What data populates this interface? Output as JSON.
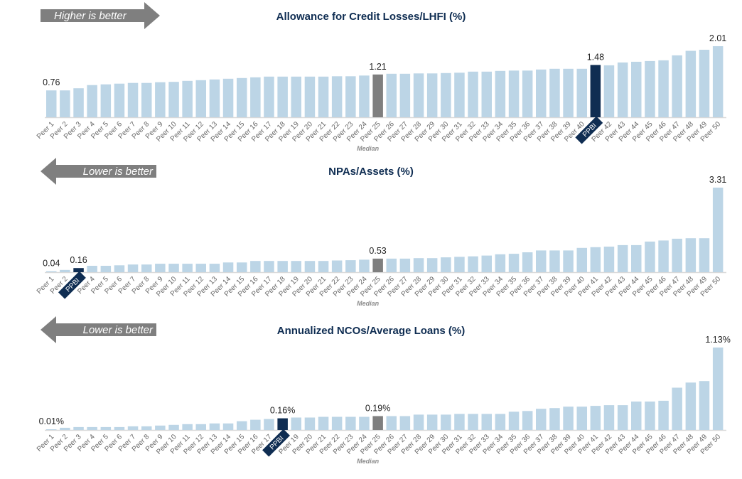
{
  "colors": {
    "peer": "#bcd5e6",
    "median": "#7f7f7f",
    "company": "#0f2d52",
    "arrow": "#7f7f7f"
  },
  "median_label": "Median",
  "chart_data": [
    {
      "type": "bar",
      "title": "Allowance for Credit Losses/LHFI (%)",
      "direction_label": "Higher is better",
      "direction": "right",
      "categories": [
        "Peer 1",
        "Peer 2",
        "Peer 3",
        "Peer 4",
        "Peer 5",
        "Peer 6",
        "Peer 7",
        "Peer 8",
        "Peer 9",
        "Peer 10",
        "Peer 11",
        "Peer 12",
        "Peer 13",
        "Peer 14",
        "Peer 15",
        "Peer 16",
        "Peer 17",
        "Peer 18",
        "Peer 19",
        "Peer 20",
        "Peer 21",
        "Peer 22",
        "Peer 23",
        "Peer 24",
        "Peer 25",
        "Peer 26",
        "Peer 27",
        "Peer 28",
        "Peer 29",
        "Peer 30",
        "Peer 31",
        "Peer 32",
        "Peer 33",
        "Peer 34",
        "Peer 35",
        "Peer 36",
        "Peer 37",
        "Peer 38",
        "Peer 39",
        "Peer 40",
        "PPBI",
        "Peer 42",
        "Peer 43",
        "Peer 44",
        "Peer 45",
        "Peer 46",
        "Peer 47",
        "Peer 48",
        "Peer 49",
        "Peer 50"
      ],
      "values": [
        0.76,
        0.76,
        0.82,
        0.91,
        0.93,
        0.95,
        0.97,
        0.97,
        0.99,
        1.0,
        1.03,
        1.05,
        1.07,
        1.09,
        1.11,
        1.13,
        1.15,
        1.15,
        1.15,
        1.15,
        1.15,
        1.16,
        1.16,
        1.18,
        1.21,
        1.23,
        1.23,
        1.24,
        1.24,
        1.25,
        1.26,
        1.29,
        1.29,
        1.31,
        1.32,
        1.32,
        1.35,
        1.37,
        1.37,
        1.37,
        1.48,
        1.47,
        1.55,
        1.57,
        1.59,
        1.61,
        1.75,
        1.88,
        1.91,
        2.01
      ],
      "company_index": 40,
      "median_index": 24,
      "data_labels": [
        {
          "index": 0,
          "text": "0.76"
        },
        {
          "index": 24,
          "text": "1.21"
        },
        {
          "index": 40,
          "text": "1.48"
        },
        {
          "index": 49,
          "text": "2.01"
        }
      ],
      "ylim": [
        0,
        2.01
      ]
    },
    {
      "type": "bar",
      "title": "NPAs/Assets  (%)",
      "direction_label": "Lower is better",
      "direction": "left",
      "categories": [
        "Peer 1",
        "Peer 2",
        "PPBI",
        "Peer 4",
        "Peer 5",
        "Peer 6",
        "Peer 7",
        "Peer 8",
        "Peer 9",
        "Peer 10",
        "Peer 11",
        "Peer 12",
        "Peer 13",
        "Peer 14",
        "Peer 15",
        "Peer 16",
        "Peer 17",
        "Peer 18",
        "Peer 19",
        "Peer 20",
        "Peer 21",
        "Peer 22",
        "Peer 23",
        "Peer 24",
        "Peer 25",
        "Peer 26",
        "Peer 27",
        "Peer 28",
        "Peer 29",
        "Peer 30",
        "Peer 31",
        "Peer 32",
        "Peer 33",
        "Peer 34",
        "Peer 35",
        "Peer 36",
        "Peer 37",
        "Peer 38",
        "Peer 39",
        "Peer 40",
        "Peer 41",
        "Peer 42",
        "Peer 43",
        "Peer 44",
        "Peer 45",
        "Peer 46",
        "Peer 47",
        "Peer 48",
        "Peer 49",
        "Peer 50"
      ],
      "values": [
        0.04,
        0.09,
        0.16,
        0.25,
        0.25,
        0.27,
        0.3,
        0.3,
        0.33,
        0.33,
        0.33,
        0.33,
        0.33,
        0.38,
        0.38,
        0.44,
        0.44,
        0.44,
        0.44,
        0.44,
        0.44,
        0.46,
        0.47,
        0.49,
        0.53,
        0.53,
        0.53,
        0.55,
        0.55,
        0.58,
        0.6,
        0.62,
        0.65,
        0.7,
        0.72,
        0.78,
        0.85,
        0.85,
        0.85,
        0.95,
        0.98,
        1.0,
        1.06,
        1.06,
        1.2,
        1.24,
        1.31,
        1.33,
        1.33,
        3.31
      ],
      "company_index": 2,
      "median_index": 24,
      "data_labels": [
        {
          "index": 0,
          "text": "0.04"
        },
        {
          "index": 2,
          "text": "0.16"
        },
        {
          "index": 24,
          "text": "0.53"
        },
        {
          "index": 49,
          "text": "3.31"
        }
      ],
      "ylim": [
        0,
        3.31
      ]
    },
    {
      "type": "bar",
      "title": "Annualized NCOs/Average Loans (%)",
      "direction_label": "Lower is better",
      "direction": "left",
      "categories": [
        "Peer 1",
        "Peer 2",
        "Peer 3",
        "Peer 4",
        "Peer 5",
        "Peer 6",
        "Peer 7",
        "Peer 8",
        "Peer 9",
        "Peer 10",
        "Peer 11",
        "Peer 12",
        "Peer 13",
        "Peer 14",
        "Peer 15",
        "Peer 16",
        "Peer 17",
        "PPBI",
        "Peer 19",
        "Peer 20",
        "Peer 21",
        "Peer 22",
        "Peer 23",
        "Peer 24",
        "Peer 25",
        "Peer 26",
        "Peer 27",
        "Peer 28",
        "Peer 29",
        "Peer 30",
        "Peer 31",
        "Peer 32",
        "Peer 33",
        "Peer 34",
        "Peer 35",
        "Peer 36",
        "Peer 37",
        "Peer 38",
        "Peer 39",
        "Peer 40",
        "Peer 41",
        "Peer 42",
        "Peer 43",
        "Peer 44",
        "Peer 45",
        "Peer 46",
        "Peer 47",
        "Peer 48",
        "Peer 49",
        "Peer 50"
      ],
      "values": [
        0.01,
        0.03,
        0.04,
        0.04,
        0.04,
        0.04,
        0.05,
        0.05,
        0.06,
        0.07,
        0.08,
        0.08,
        0.09,
        0.09,
        0.12,
        0.14,
        0.15,
        0.16,
        0.17,
        0.17,
        0.18,
        0.18,
        0.18,
        0.18,
        0.19,
        0.19,
        0.19,
        0.21,
        0.21,
        0.21,
        0.22,
        0.22,
        0.22,
        0.22,
        0.25,
        0.26,
        0.29,
        0.3,
        0.32,
        0.32,
        0.33,
        0.34,
        0.34,
        0.39,
        0.39,
        0.4,
        0.58,
        0.65,
        0.67,
        1.13
      ],
      "company_index": 17,
      "median_index": 24,
      "data_labels": [
        {
          "index": 0,
          "text": "0.01%"
        },
        {
          "index": 17,
          "text": "0.16%"
        },
        {
          "index": 24,
          "text": "0.19%"
        },
        {
          "index": 49,
          "text": "1.13%"
        }
      ],
      "ylim": [
        0,
        1.13
      ]
    }
  ]
}
